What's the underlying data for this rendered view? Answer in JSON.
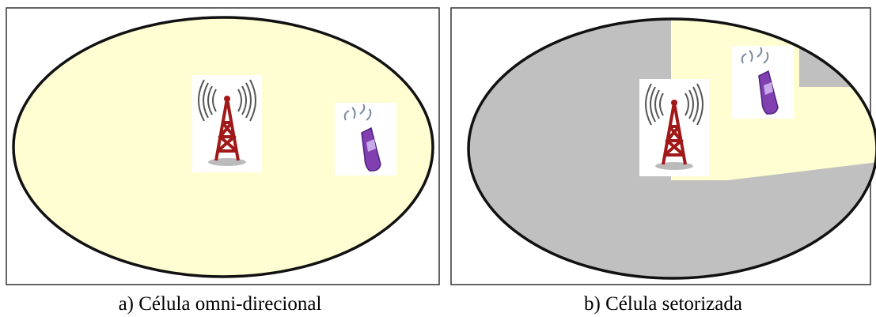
{
  "panels": [
    {
      "caption": "a) Célula omni-direcional"
    },
    {
      "caption": "b) Célula setorizada"
    }
  ]
}
